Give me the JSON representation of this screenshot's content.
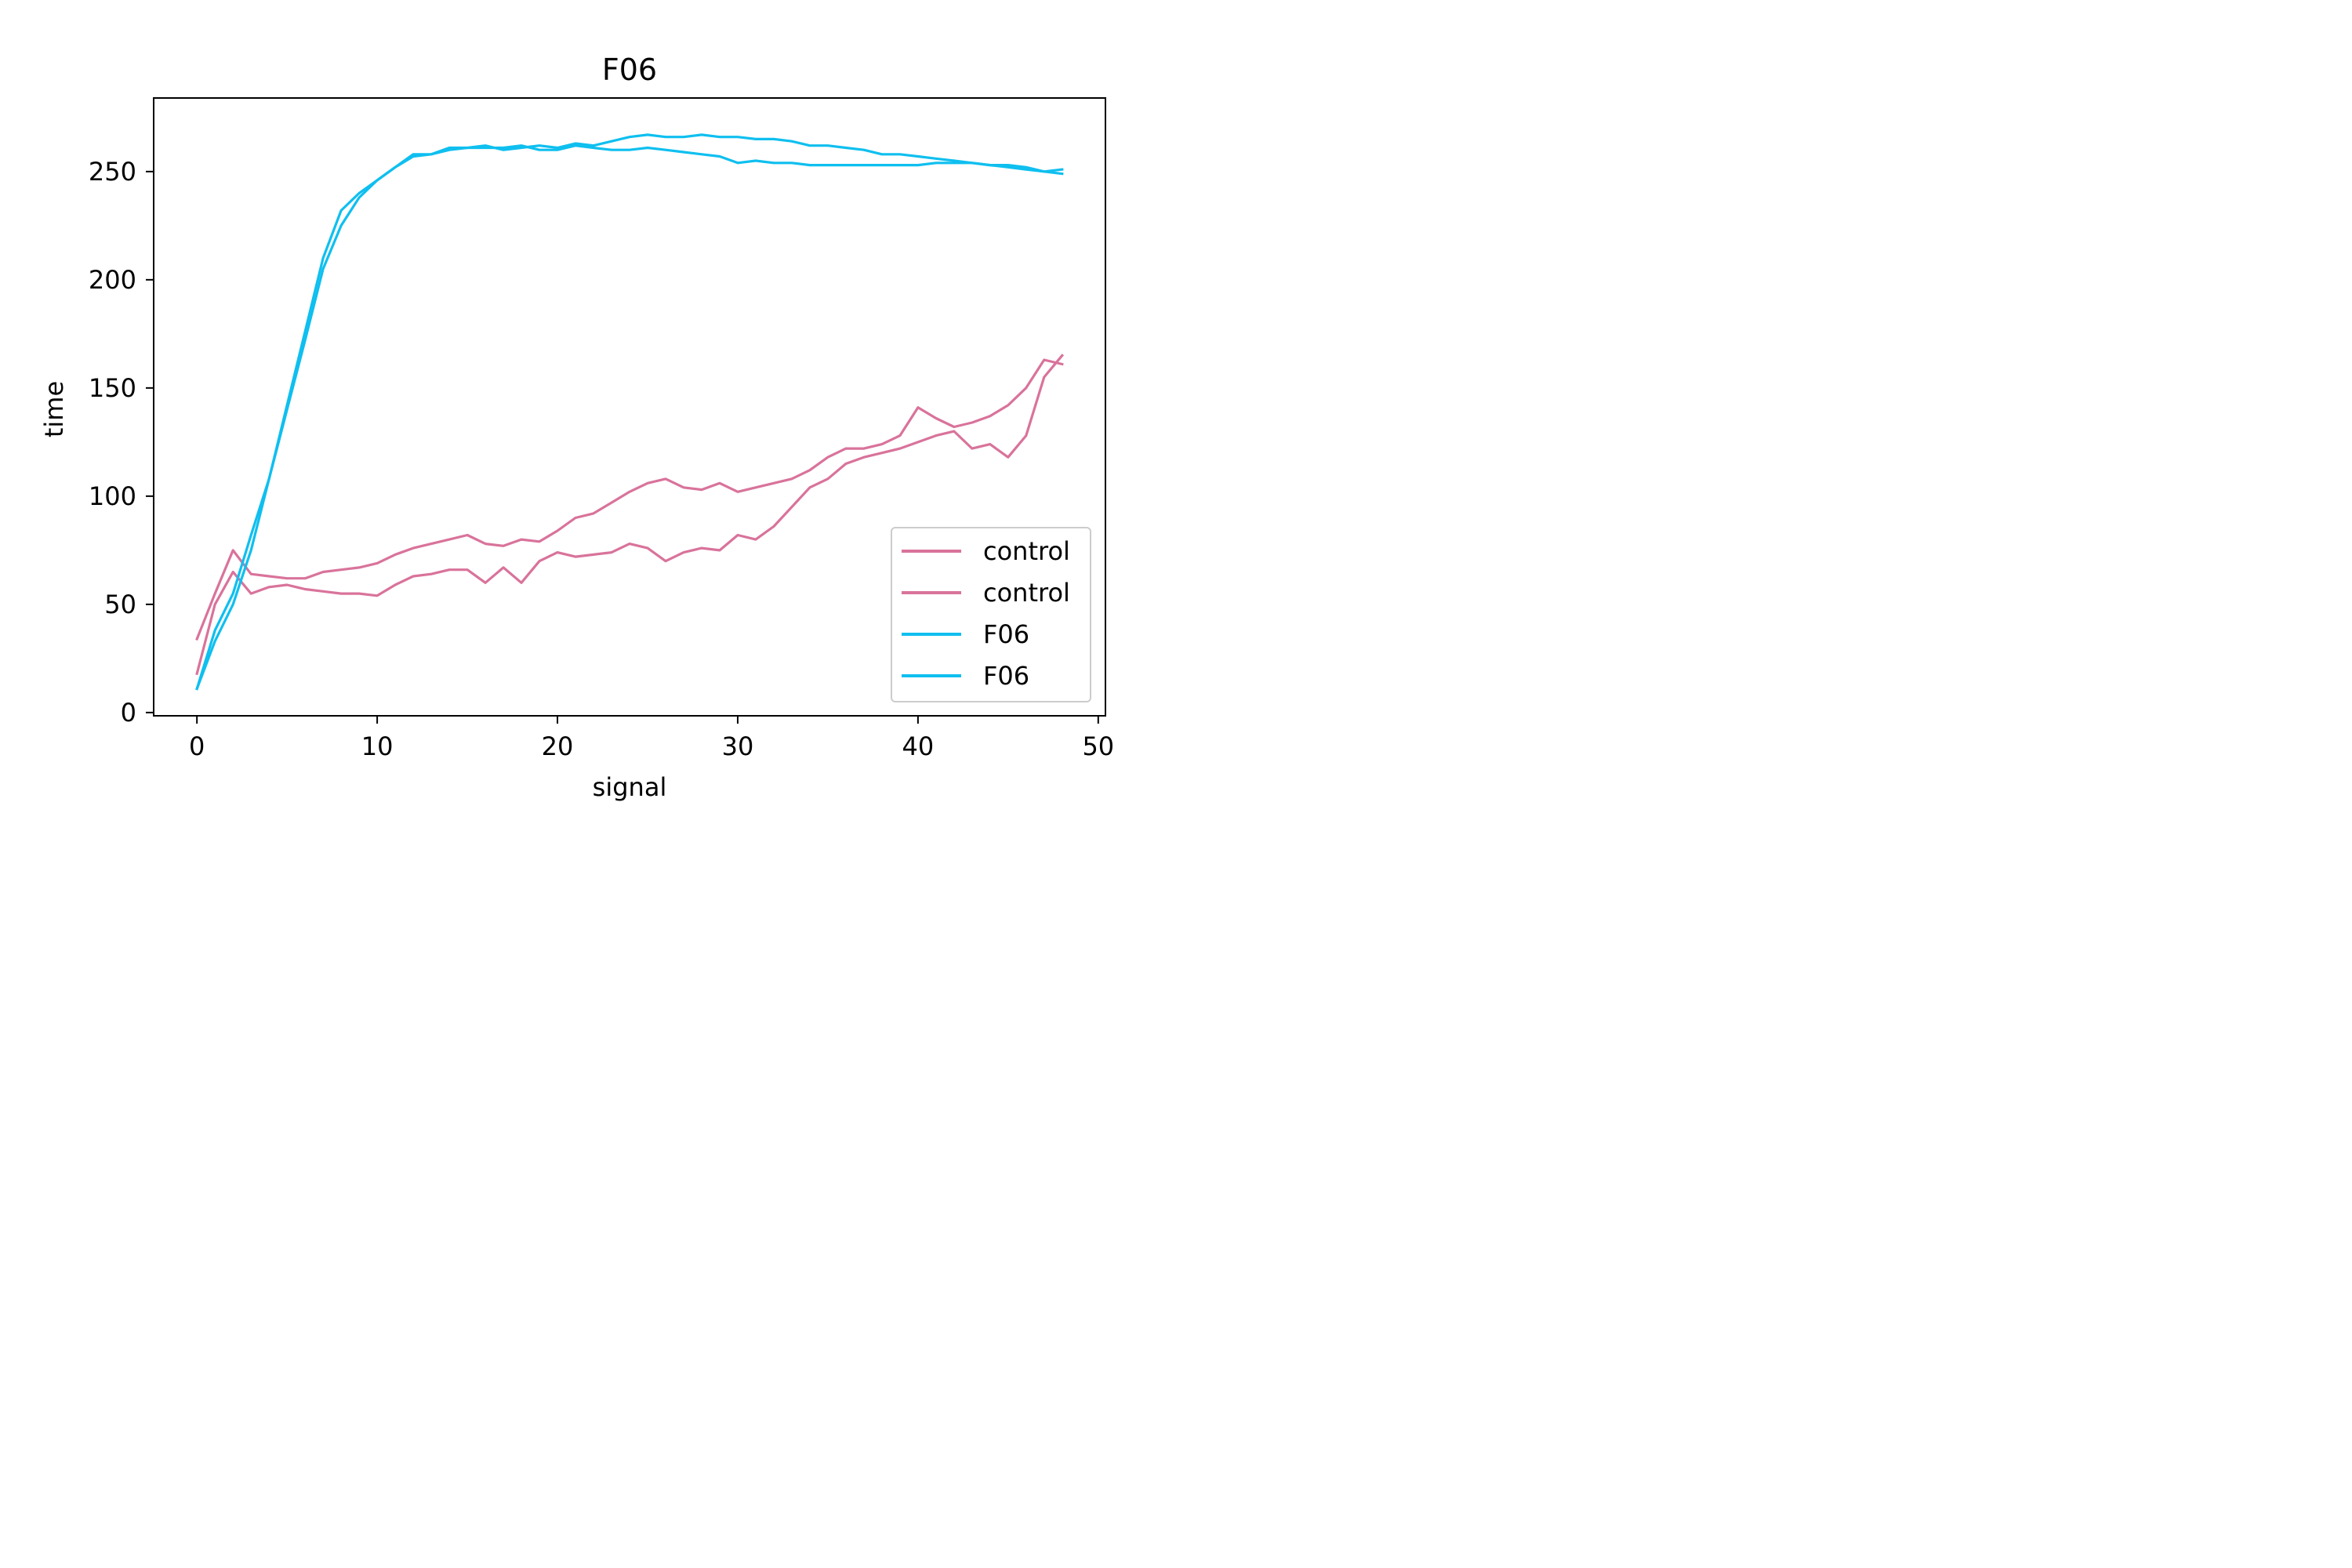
{
  "chart_data": {
    "type": "line",
    "title": "F06",
    "xlabel": "signal",
    "ylabel": "time",
    "xlim": [
      -2.4,
      50.4
    ],
    "ylim": [
      -1.5,
      284
    ],
    "xticks": [
      0,
      10,
      20,
      30,
      40,
      50
    ],
    "yticks": [
      0,
      50,
      100,
      150,
      200,
      250
    ],
    "grid": false,
    "legend_position": "lower right",
    "series": [
      {
        "name": "control",
        "color": "#d9739b",
        "x": [
          0,
          1,
          2,
          3,
          4,
          5,
          6,
          7,
          8,
          9,
          10,
          11,
          12,
          13,
          14,
          15,
          16,
          17,
          18,
          19,
          20,
          21,
          22,
          23,
          24,
          25,
          26,
          27,
          28,
          29,
          30,
          31,
          32,
          33,
          34,
          35,
          36,
          37,
          38,
          39,
          40,
          41,
          42,
          43,
          44,
          45,
          46,
          47,
          48
        ],
        "y": [
          34,
          55,
          75,
          64,
          63,
          62,
          62,
          65,
          66,
          67,
          69,
          73,
          76,
          78,
          80,
          82,
          78,
          77,
          80,
          79,
          84,
          90,
          92,
          97,
          102,
          106,
          108,
          104,
          103,
          106,
          102,
          104,
          106,
          108,
          112,
          118,
          122,
          122,
          124,
          128,
          141,
          136,
          132,
          134,
          137,
          142,
          150,
          163,
          161
        ]
      },
      {
        "name": "control",
        "color": "#d9739b",
        "x": [
          0,
          1,
          2,
          3,
          4,
          5,
          6,
          7,
          8,
          9,
          10,
          11,
          12,
          13,
          14,
          15,
          16,
          17,
          18,
          19,
          20,
          21,
          22,
          23,
          24,
          25,
          26,
          27,
          28,
          29,
          30,
          31,
          32,
          33,
          34,
          35,
          36,
          37,
          38,
          39,
          40,
          41,
          42,
          43,
          44,
          45,
          46,
          47,
          48
        ],
        "y": [
          18,
          50,
          65,
          55,
          58,
          59,
          57,
          56,
          55,
          55,
          54,
          59,
          63,
          64,
          66,
          66,
          60,
          67,
          60,
          70,
          74,
          72,
          73,
          74,
          78,
          76,
          70,
          74,
          76,
          75,
          82,
          80,
          86,
          95,
          104,
          108,
          115,
          118,
          120,
          122,
          125,
          128,
          130,
          122,
          124,
          118,
          128,
          155,
          165
        ]
      },
      {
        "name": "F06",
        "color": "#0fbfef",
        "x": [
          0,
          1,
          2,
          3,
          4,
          5,
          6,
          7,
          8,
          9,
          10,
          11,
          12,
          13,
          14,
          15,
          16,
          17,
          18,
          19,
          20,
          21,
          22,
          23,
          24,
          25,
          26,
          27,
          28,
          29,
          30,
          31,
          32,
          33,
          34,
          35,
          36,
          37,
          38,
          39,
          40,
          41,
          42,
          43,
          44,
          45,
          46,
          47,
          48
        ],
        "y": [
          11,
          38,
          55,
          82,
          108,
          140,
          172,
          205,
          225,
          238,
          246,
          252,
          258,
          258,
          261,
          261,
          262,
          260,
          261,
          262,
          261,
          263,
          262,
          264,
          266,
          267,
          266,
          266,
          267,
          266,
          266,
          265,
          265,
          264,
          262,
          262,
          261,
          260,
          258,
          258,
          257,
          256,
          255,
          254,
          253,
          252,
          251,
          250,
          251
        ]
      },
      {
        "name": "F06",
        "color": "#0fbfef",
        "x": [
          0,
          1,
          2,
          3,
          4,
          5,
          6,
          7,
          8,
          9,
          10,
          11,
          12,
          13,
          14,
          15,
          16,
          17,
          18,
          19,
          20,
          21,
          22,
          23,
          24,
          25,
          26,
          27,
          28,
          29,
          30,
          31,
          32,
          33,
          34,
          35,
          36,
          37,
          38,
          39,
          40,
          41,
          42,
          43,
          44,
          45,
          46,
          47,
          48
        ],
        "y": [
          11,
          33,
          50,
          75,
          108,
          142,
          176,
          210,
          232,
          240,
          246,
          252,
          257,
          258,
          260,
          261,
          261,
          261,
          262,
          260,
          260,
          262,
          261,
          260,
          260,
          261,
          260,
          259,
          258,
          257,
          254,
          255,
          254,
          254,
          253,
          253,
          253,
          253,
          253,
          253,
          253,
          254,
          254,
          254,
          253,
          253,
          252,
          250,
          249
        ]
      }
    ]
  }
}
